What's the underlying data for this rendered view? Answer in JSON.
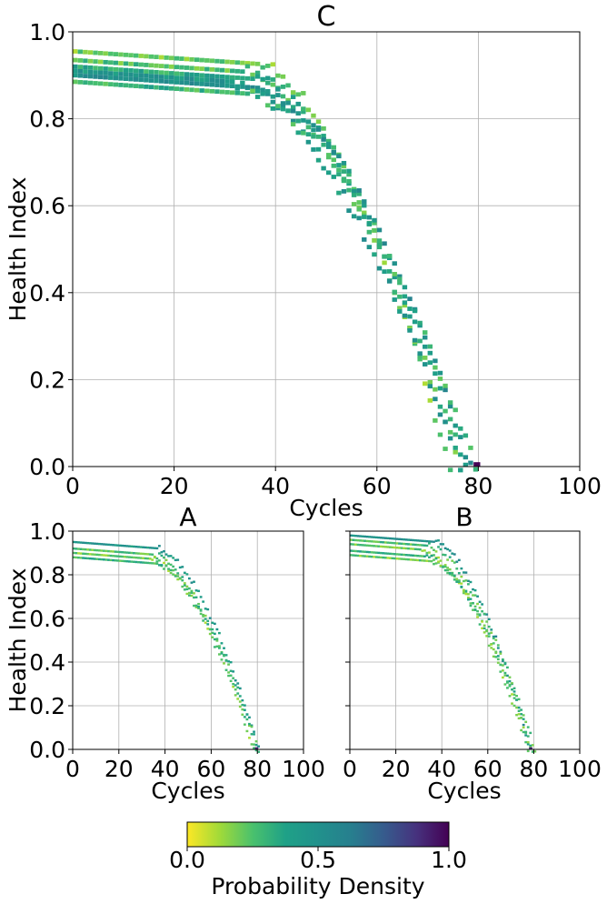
{
  "colorbar": {
    "label": "Probability Density",
    "ticks": [
      0.0,
      0.5,
      1.0
    ],
    "tick_labels": [
      "0.0",
      "0.5",
      "1.0"
    ],
    "colormap": "viridis_r"
  },
  "chart_data": [
    {
      "type": "heatmap",
      "title": "C",
      "xlabel": "Cycles",
      "ylabel": "Health Index",
      "xlim": [
        0,
        100
      ],
      "ylim": [
        0.0,
        1.0
      ],
      "xticks": [
        0,
        20,
        40,
        60,
        80,
        100
      ],
      "xtick_labels": [
        "0",
        "20",
        "40",
        "60",
        "80",
        "100"
      ],
      "yticks": [
        0.0,
        0.2,
        0.4,
        0.6,
        0.8,
        1.0
      ],
      "ytick_labels": [
        "0.0",
        "0.2",
        "0.4",
        "0.6",
        "0.8",
        "1.0"
      ],
      "grid": true,
      "trajectories": [
        {
          "initial": 0.955,
          "knee": 36,
          "eol": 74,
          "density": 0.2
        },
        {
          "initial": 0.935,
          "knee": 33,
          "eol": 76,
          "density": 0.25
        },
        {
          "initial": 0.92,
          "knee": 35,
          "eol": 77,
          "density": 0.35
        },
        {
          "initial": 0.91,
          "knee": 31,
          "eol": 76,
          "density": 0.45
        },
        {
          "initial": 0.9,
          "knee": 36,
          "eol": 78,
          "density": 0.5
        },
        {
          "initial": 0.885,
          "knee": 34,
          "eol": 79,
          "density": 0.3
        }
      ],
      "end_marker": {
        "cycle": 80,
        "density": 1.0
      }
    },
    {
      "type": "heatmap",
      "title": "A",
      "xlabel": "Cycles",
      "ylabel": "Health Index",
      "xlim": [
        0,
        100
      ],
      "ylim": [
        0.0,
        1.0
      ],
      "xticks": [
        0,
        20,
        40,
        60,
        80,
        100
      ],
      "xtick_labels": [
        "0",
        "20",
        "40",
        "60",
        "80",
        "100"
      ],
      "yticks": [
        0.0,
        0.2,
        0.4,
        0.6,
        0.8,
        1.0
      ],
      "ytick_labels": [
        "0.0",
        "0.2",
        "0.4",
        "0.6",
        "0.8",
        "1.0"
      ],
      "grid": true,
      "trajectories": [
        {
          "initial": 0.95,
          "knee": 36,
          "eol": 80,
          "density": 0.45
        },
        {
          "initial": 0.92,
          "knee": 34,
          "eol": 79,
          "density": 0.25
        },
        {
          "initial": 0.9,
          "knee": 33,
          "eol": 78,
          "density": 0.2
        },
        {
          "initial": 0.88,
          "knee": 35,
          "eol": 80,
          "density": 0.3
        }
      ],
      "end_marker": {
        "cycle": 80,
        "density": 0.9
      }
    },
    {
      "type": "heatmap",
      "title": "B",
      "xlabel": "Cycles",
      "ylabel": "",
      "xlim": [
        0,
        100
      ],
      "ylim": [
        0.0,
        1.0
      ],
      "xticks": [
        0,
        20,
        40,
        60,
        80,
        100
      ],
      "xtick_labels": [
        "0",
        "20",
        "40",
        "60",
        "80",
        "100"
      ],
      "yticks": [
        0.0,
        0.2,
        0.4,
        0.6,
        0.8,
        1.0
      ],
      "ytick_labels": [],
      "grid": true,
      "trajectories": [
        {
          "initial": 0.98,
          "knee": 36,
          "eol": 78,
          "density": 0.5
        },
        {
          "initial": 0.96,
          "knee": 33,
          "eol": 80,
          "density": 0.25
        },
        {
          "initial": 0.94,
          "knee": 30,
          "eol": 77,
          "density": 0.2
        },
        {
          "initial": 0.91,
          "knee": 32,
          "eol": 79,
          "density": 0.3
        },
        {
          "initial": 0.89,
          "knee": 35,
          "eol": 78,
          "density": 0.2
        }
      ],
      "end_marker": {
        "cycle": 79,
        "density": 0.9
      }
    }
  ]
}
